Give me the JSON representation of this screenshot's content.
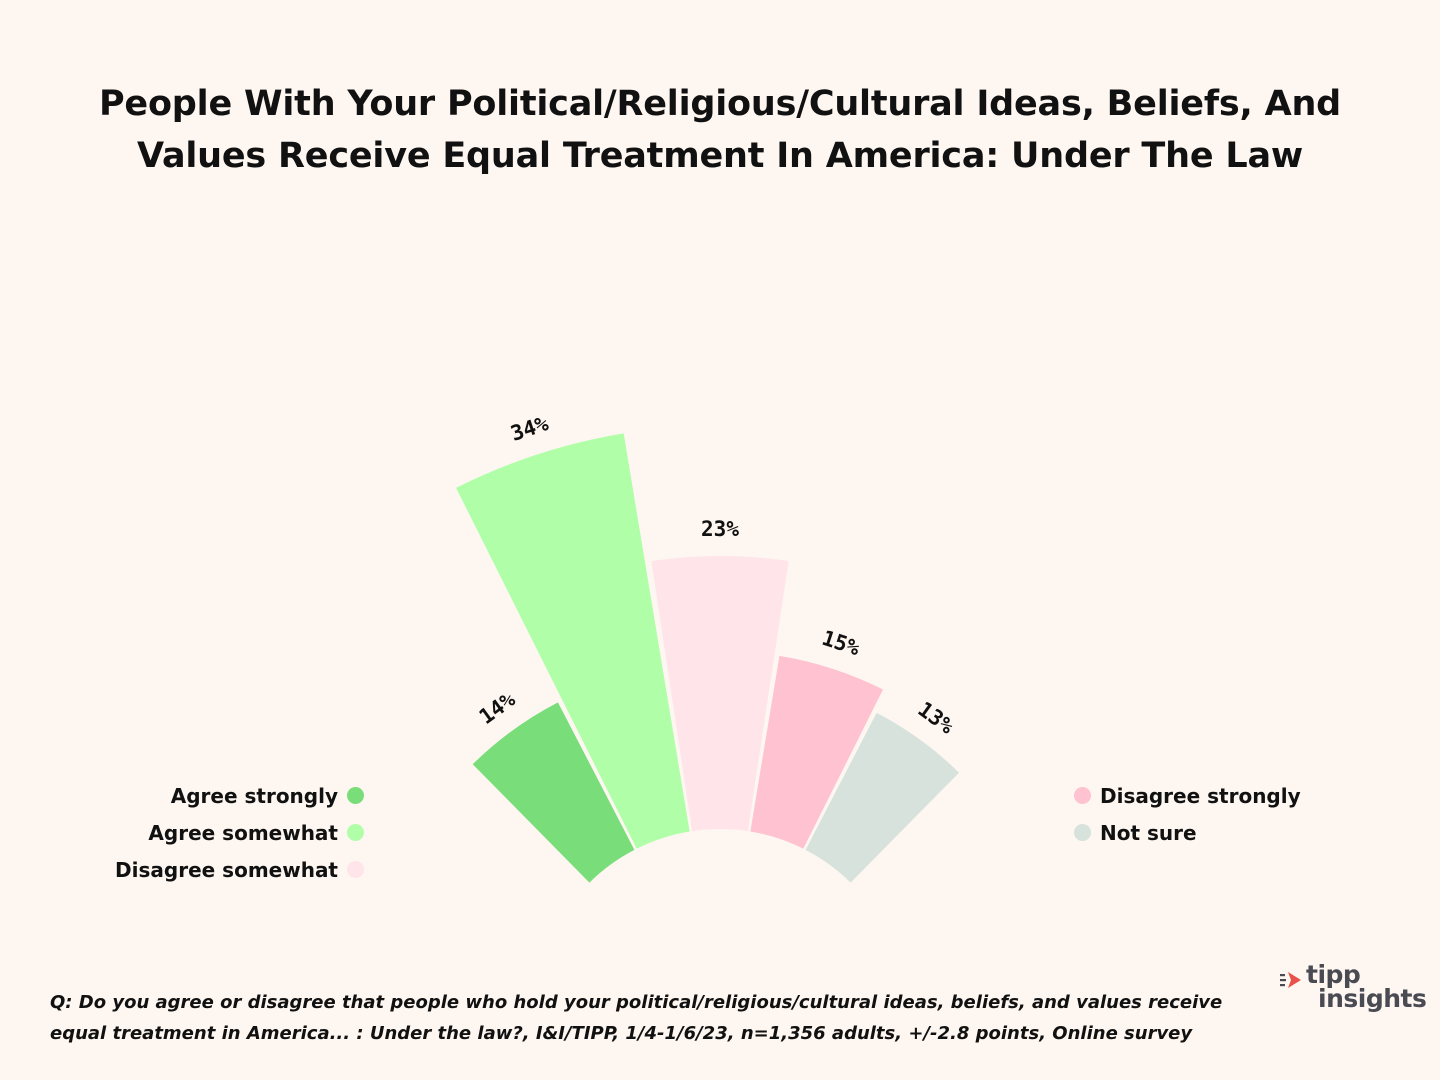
{
  "title_lines": [
    "People With Your Political/Religious/Cultural Ideas, Beliefs, And",
    "Values Receive Equal Treatment In America: Under The Law"
  ],
  "chart_data": {
    "type": "radial-bar",
    "title": "People With Your Political/Religious/Cultural Ideas, Beliefs, And Values Receive Equal Treatment In America: Under The Law",
    "categories": [
      "Agree strongly",
      "Agree somewhat",
      "Disagree somewhat",
      "Disagree strongly",
      "Not sure"
    ],
    "values": [
      14,
      34,
      23,
      15,
      13
    ],
    "labels": [
      "14%",
      "34%",
      "23%",
      "15%",
      "13%"
    ],
    "colors": [
      "#79de79",
      "#b0ffa8",
      "#ffe4ea",
      "#ffc2d0",
      "#d6e2db"
    ],
    "unit": "%",
    "legend_position": "left and right"
  },
  "legend": {
    "left": [
      {
        "label": "Agree strongly",
        "color": "#79de79"
      },
      {
        "label": "Agree somewhat",
        "color": "#b0ffa8"
      },
      {
        "label": "Disagree somewhat",
        "color": "#ffe4ea"
      }
    ],
    "right": [
      {
        "label": "Disagree strongly",
        "color": "#ffc2d0"
      },
      {
        "label": "Not sure",
        "color": "#d6e2db"
      }
    ]
  },
  "footnote_lines": [
    "Q: Do you agree or disagree that people who hold your political/religious/cultural ideas, beliefs, and values receive",
    "equal treatment in America... : Under the law?, I&I/TIPP, 1/4-1/6/23, n=1,356 adults, +/-2.8 points, Online survey"
  ],
  "logo": {
    "line1": "tipp",
    "line2": "insights",
    "icon": "arrows-icon",
    "accent_color": "#e8524a"
  },
  "colors": {
    "background": "#fdf6f1",
    "text": "#111111"
  }
}
